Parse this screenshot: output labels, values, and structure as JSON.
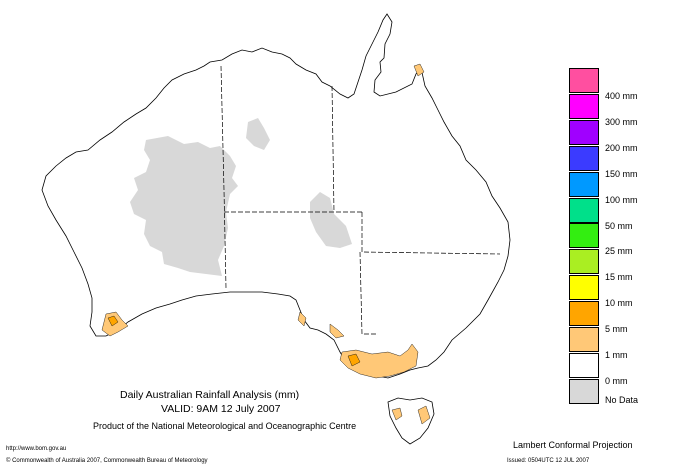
{
  "title": "Daily Australian Rainfall Analysis (mm)",
  "valid": "VALID: 9AM 12 July 2007",
  "product": "Product of the National Meteorological and Oceanographic Centre",
  "url": "http://www.bom.gov.au",
  "copyright": "© Commonwealth of Australia 2007, Commonwealth Bureau of Meteorology",
  "projection": "Lambert Conformal Projection",
  "issued": "Issued: 0504UTC 12 JUL 2007",
  "legend": [
    {
      "label": "400 mm",
      "color": "#ff4fa0"
    },
    {
      "label": "300 mm",
      "color": "#ff00ff"
    },
    {
      "label": "200 mm",
      "color": "#a000ff"
    },
    {
      "label": "150 mm",
      "color": "#3b3bff"
    },
    {
      "label": "100 mm",
      "color": "#0099ff"
    },
    {
      "label": "50 mm",
      "color": "#00e08a"
    },
    {
      "label": "25 mm",
      "color": "#33ee11"
    },
    {
      "label": "15 mm",
      "color": "#aaee22"
    },
    {
      "label": "10 mm",
      "color": "#ffff00"
    },
    {
      "label": "5 mm",
      "color": "#ffa500"
    },
    {
      "label": "1 mm",
      "color": "#ffc877"
    },
    {
      "label": "0 mm",
      "color": "#ffffff"
    },
    {
      "label": "No Data",
      "color": "#d8d8d8"
    }
  ]
}
